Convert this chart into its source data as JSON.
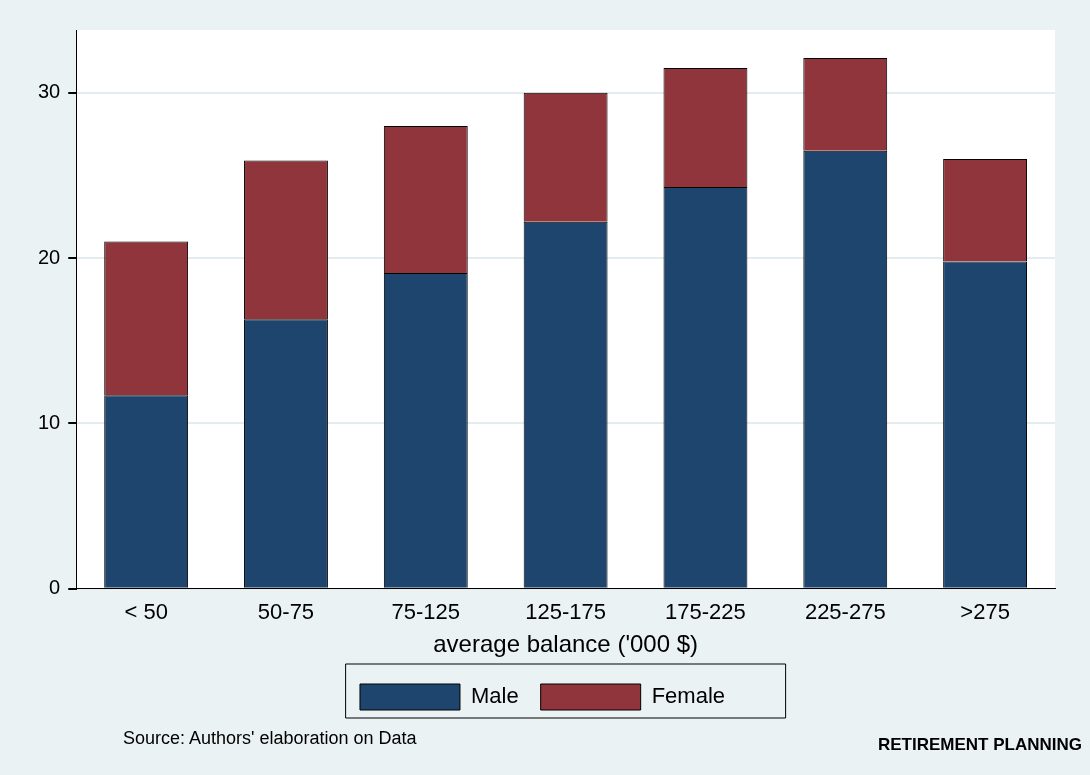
{
  "chart_data": {
    "type": "bar",
    "stacked": true,
    "xlabel": "average balance ('000 $)",
    "categories": [
      "< 50",
      "50-75",
      "75-125",
      "125-175",
      "175-225",
      "225-275",
      ">275"
    ],
    "series": [
      {
        "name": "Male",
        "color": "#1e456e",
        "values": [
          11.7,
          16.3,
          19.1,
          22.2,
          24.3,
          26.5,
          19.8
        ]
      },
      {
        "name": "Female",
        "color": "#8f353b",
        "values": [
          9.3,
          9.6,
          8.9,
          7.8,
          7.2,
          5.6,
          6.2
        ]
      }
    ],
    "ylim": [
      0,
      33.8
    ],
    "yticks": [
      0,
      10,
      20,
      30
    ],
    "grid": "y",
    "legend": "bottom",
    "annotations": [
      "Source: Authors' elaboration on Data",
      "RETIREMENT PLANNING"
    ]
  }
}
